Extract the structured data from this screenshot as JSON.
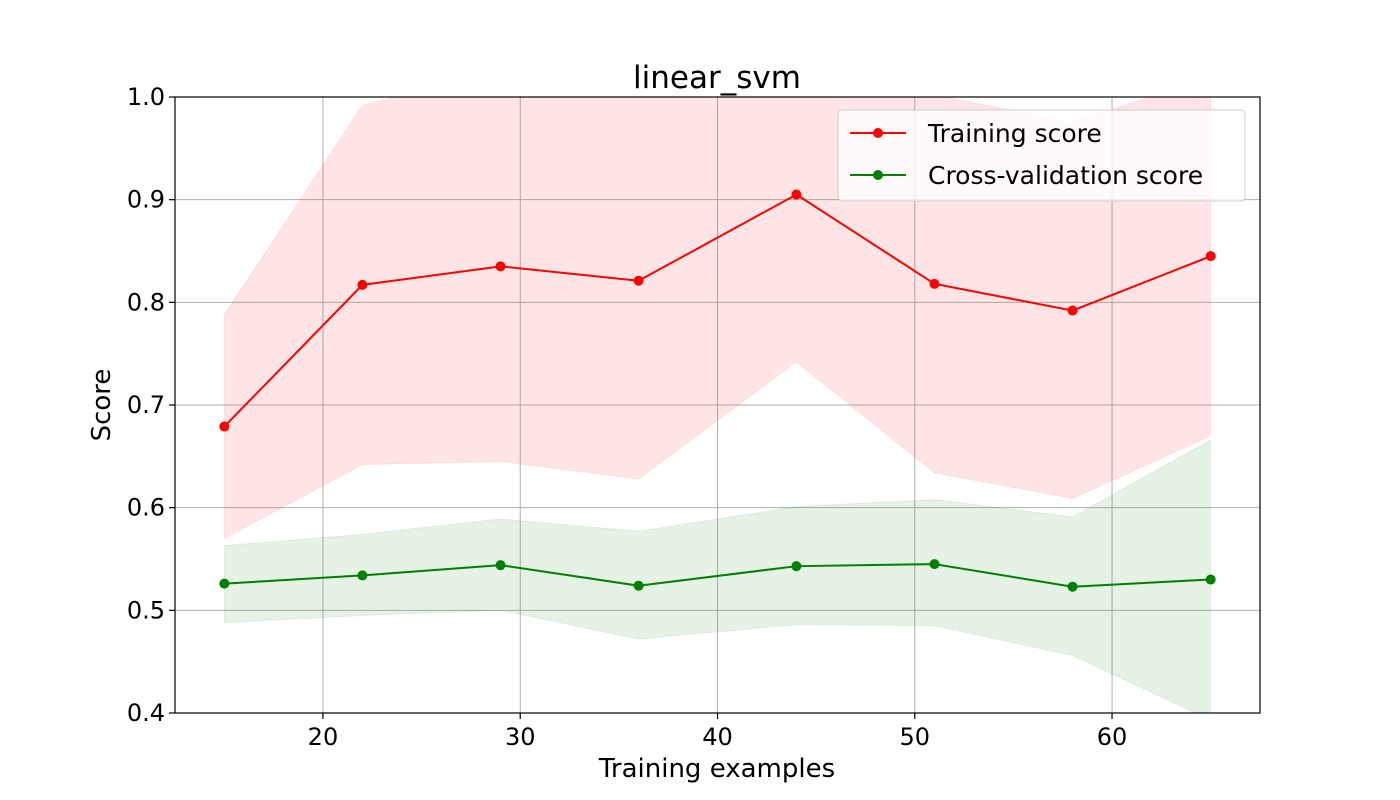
{
  "chart_data": {
    "type": "line",
    "title": "linear_svm",
    "xlabel": "Training examples",
    "ylabel": "Score",
    "xlim": [
      12.5,
      67.5
    ],
    "ylim": [
      0.4,
      1.0
    ],
    "xticks": [
      20,
      30,
      40,
      50,
      60
    ],
    "xtick_labels": [
      "20",
      "30",
      "40",
      "50",
      "60"
    ],
    "yticks": [
      0.4,
      0.5,
      0.6,
      0.7,
      0.8,
      0.9,
      1.0
    ],
    "ytick_labels": [
      "0.4",
      "0.5",
      "0.6",
      "0.7",
      "0.8",
      "0.9",
      "1.0"
    ],
    "grid": true,
    "legend_position": "top-right",
    "x": [
      15,
      22,
      29,
      36,
      44,
      51,
      58,
      65
    ],
    "series": [
      {
        "name": "Training score",
        "color": "#ff0000",
        "marker": "circle",
        "values": [
          0.679,
          0.817,
          0.835,
          0.821,
          0.905,
          0.818,
          0.792,
          0.845
        ],
        "band_lower": [
          0.57,
          0.642,
          0.645,
          0.628,
          0.742,
          0.634,
          0.609,
          0.67
        ],
        "band_upper": [
          0.788,
          0.992,
          1.025,
          1.014,
          1.068,
          1.002,
          0.975,
          1.02
        ],
        "band_color": "#ff0000",
        "band_opacity": 0.1
      },
      {
        "name": "Cross-validation score",
        "color": "#008000",
        "marker": "circle",
        "values": [
          0.526,
          0.534,
          0.544,
          0.524,
          0.543,
          0.545,
          0.523,
          0.53
        ],
        "band_lower": [
          0.488,
          0.495,
          0.5,
          0.472,
          0.486,
          0.485,
          0.456,
          0.393
        ],
        "band_upper": [
          0.563,
          0.574,
          0.589,
          0.577,
          0.601,
          0.608,
          0.591,
          0.666
        ],
        "band_color": "#008000",
        "band_opacity": 0.1
      }
    ]
  }
}
